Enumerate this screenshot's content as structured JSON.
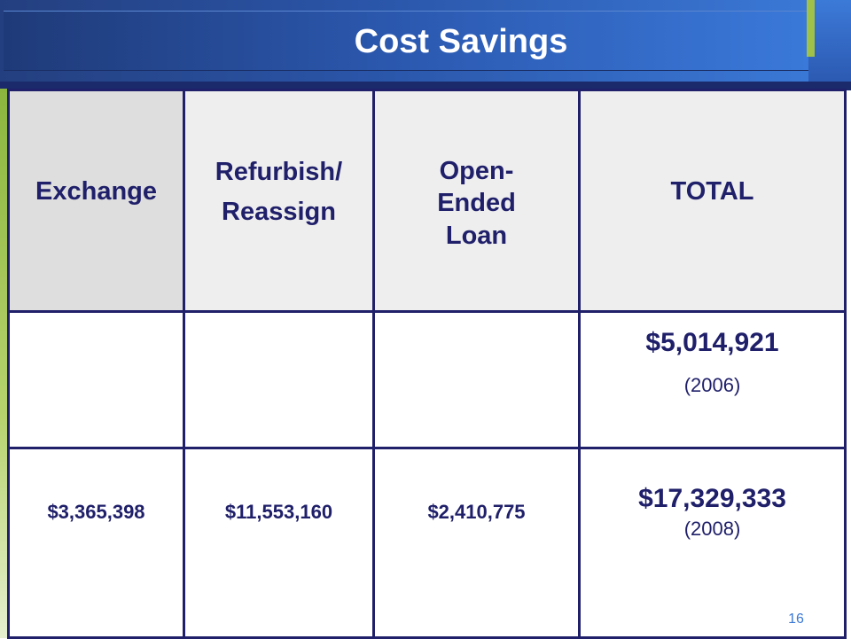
{
  "slide": {
    "title": "Cost Savings",
    "page_number": "16"
  },
  "table": {
    "headers": {
      "exchange": "Exchange",
      "refurbish_line1": "Refurbish/",
      "refurbish_line2": "Reassign",
      "open_line1": "Open-",
      "open_line2": "Ended",
      "open_line3": "Loan",
      "total": "TOTAL"
    },
    "rows": [
      {
        "exchange": "",
        "refurbish": "",
        "open_ended": "",
        "total_amount": "$5,014,921",
        "total_year": "(2006)"
      },
      {
        "exchange": "$3,365,398",
        "refurbish": "$11,553,160",
        "open_ended": "$2,410,775",
        "total_amount": "$17,329,333",
        "total_year": "(2008)"
      }
    ]
  },
  "colors": {
    "title_bar": "#2a55a8",
    "accent_green": "#9fc14a",
    "table_border": "#1f1f6a",
    "header_bg": "#eeeeee",
    "page_number": "#3a78d6"
  }
}
